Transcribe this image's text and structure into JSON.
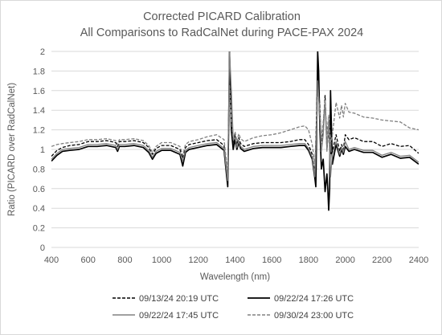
{
  "chart_data": {
    "type": "line",
    "title": "Corrected PICARD Calibration",
    "subtitle": "All Comparisons to RadCalNet during PACE-PAX 2024",
    "xlabel": "Wavelength (nm)",
    "ylabel": "Ratio (PICARD over RadCalNet)",
    "xlim": [
      400,
      2400
    ],
    "ylim": [
      0,
      2
    ],
    "x_ticks": [
      "400",
      "600",
      "800",
      "1000",
      "1200",
      "1400",
      "1600",
      "1800",
      "2000",
      "2200",
      "2400"
    ],
    "y_ticks": [
      "0",
      "0.2",
      "0.4",
      "0.6",
      "0.8",
      "1",
      "1.2",
      "1.4",
      "1.6",
      "1.8",
      "2"
    ],
    "grid": "horizontal",
    "legend_position": "bottom",
    "series": [
      {
        "name": "09/13/24 20:19 UTC",
        "color": "#000000",
        "style": "dashed",
        "x": [
          400,
          430,
          460,
          500,
          550,
          600,
          650,
          700,
          750,
          760,
          770,
          800,
          850,
          900,
          930,
          950,
          970,
          1000,
          1050,
          1100,
          1115,
          1130,
          1150,
          1200,
          1250,
          1300,
          1340,
          1350,
          1360,
          1365,
          1370,
          1380,
          1390,
          1400,
          1410,
          1420,
          1430,
          1450,
          1500,
          1550,
          1600,
          1650,
          1700,
          1750,
          1780,
          1800,
          1820,
          1835,
          1845,
          1850,
          1855,
          1862,
          1870,
          1880,
          1890,
          1900,
          1910,
          1920,
          1930,
          1950,
          1970,
          1980,
          1990,
          2000,
          2020,
          2050,
          2100,
          2150,
          2200,
          2250,
          2300,
          2350,
          2400
        ],
        "values": [
          0.93,
          0.99,
          1.02,
          1.04,
          1.05,
          1.08,
          1.08,
          1.09,
          1.07,
          1.03,
          1.08,
          1.08,
          1.09,
          1.07,
          1.02,
          0.95,
          1.01,
          1.04,
          1.04,
          1.0,
          0.91,
          1.02,
          1.05,
          1.07,
          1.09,
          1.1,
          1.04,
          0.86,
          0.7,
          1.3,
          1.75,
          1.25,
          1.05,
          1.15,
          1.05,
          1.12,
          1.06,
          1.03,
          1.06,
          1.07,
          1.07,
          1.07,
          1.08,
          1.1,
          1.1,
          1.05,
          0.95,
          0.75,
          1.45,
          1.75,
          1.65,
          1.4,
          1.0,
          1.2,
          1.55,
          1.0,
          1.2,
          0.95,
          0.98,
          1.15,
          0.98,
          1.05,
          1.0,
          1.15,
          1.1,
          1.12,
          1.08,
          1.08,
          1.03,
          1.06,
          1.03,
          1.04,
          0.96
        ]
      },
      {
        "name": "09/22/24 17:26 UTC",
        "color": "#000000",
        "style": "solid",
        "x": [
          400,
          430,
          460,
          500,
          550,
          600,
          650,
          700,
          750,
          760,
          770,
          800,
          850,
          900,
          930,
          950,
          970,
          1000,
          1050,
          1100,
          1115,
          1130,
          1150,
          1200,
          1250,
          1300,
          1340,
          1350,
          1360,
          1365,
          1370,
          1380,
          1390,
          1400,
          1410,
          1420,
          1430,
          1450,
          1500,
          1550,
          1600,
          1650,
          1700,
          1750,
          1780,
          1800,
          1820,
          1835,
          1840,
          1845,
          1850,
          1855,
          1862,
          1870,
          1880,
          1890,
          1900,
          1905,
          1910,
          1915,
          1920,
          1930,
          1950,
          1970,
          1980,
          1990,
          2000,
          2020,
          2050,
          2100,
          2150,
          2200,
          2250,
          2300,
          2350,
          2400
        ],
        "values": [
          0.88,
          0.94,
          0.98,
          0.99,
          1.0,
          1.03,
          1.03,
          1.04,
          1.02,
          0.98,
          1.03,
          1.03,
          1.04,
          1.02,
          0.97,
          0.9,
          0.96,
          0.99,
          0.99,
          0.95,
          0.83,
          0.97,
          1.0,
          1.02,
          1.04,
          1.05,
          0.99,
          0.8,
          0.62,
          1.2,
          2.0,
          1.2,
          1.0,
          1.1,
          1.0,
          1.07,
          1.01,
          0.98,
          1.01,
          1.02,
          1.02,
          1.02,
          1.03,
          1.04,
          1.04,
          0.99,
          0.9,
          0.7,
          0.62,
          1.3,
          2.0,
          1.8,
          1.2,
          0.8,
          0.9,
          0.57,
          0.75,
          0.6,
          0.38,
          0.6,
          1.6,
          0.85,
          1.05,
          0.93,
          1.0,
          0.95,
          1.03,
          0.98,
          1.0,
          0.97,
          0.97,
          0.92,
          0.95,
          0.91,
          0.92,
          0.85
        ]
      },
      {
        "name": "09/22/24 17:45 UTC",
        "color": "#808080",
        "style": "solid",
        "x": [
          400,
          430,
          460,
          500,
          550,
          600,
          650,
          700,
          750,
          760,
          770,
          800,
          850,
          900,
          930,
          950,
          970,
          1000,
          1050,
          1100,
          1115,
          1130,
          1150,
          1200,
          1250,
          1300,
          1340,
          1350,
          1360,
          1365,
          1370,
          1380,
          1390,
          1400,
          1410,
          1420,
          1430,
          1450,
          1500,
          1550,
          1600,
          1650,
          1700,
          1750,
          1780,
          1800,
          1820,
          1835,
          1845,
          1850,
          1855,
          1862,
          1870,
          1880,
          1890,
          1900,
          1910,
          1920,
          1930,
          1950,
          1970,
          1980,
          1990,
          2000,
          2020,
          2050,
          2100,
          2150,
          2200,
          2250,
          2300,
          2350,
          2400
        ],
        "values": [
          0.9,
          0.96,
          1.0,
          1.01,
          1.02,
          1.05,
          1.05,
          1.06,
          1.04,
          1.0,
          1.05,
          1.05,
          1.06,
          1.04,
          0.99,
          0.92,
          0.98,
          1.01,
          1.01,
          0.97,
          0.88,
          0.99,
          1.02,
          1.04,
          1.06,
          1.07,
          1.01,
          0.83,
          0.68,
          1.4,
          2.0,
          1.6,
          1.1,
          1.12,
          1.02,
          1.09,
          1.03,
          1.0,
          1.03,
          1.04,
          1.04,
          1.04,
          1.05,
          1.06,
          1.06,
          1.01,
          0.92,
          0.72,
          1.3,
          1.7,
          1.55,
          1.3,
          0.98,
          1.15,
          1.5,
          0.98,
          1.3,
          0.72,
          0.95,
          1.08,
          0.95,
          1.02,
          0.97,
          1.08,
          1.0,
          1.02,
          0.99,
          0.99,
          0.94,
          0.97,
          0.93,
          0.94,
          0.87
        ]
      },
      {
        "name": "09/30/24 23:00 UTC",
        "color": "#808080",
        "style": "dashed",
        "x": [
          400,
          430,
          460,
          500,
          550,
          600,
          650,
          700,
          750,
          760,
          770,
          800,
          850,
          900,
          930,
          950,
          970,
          1000,
          1050,
          1100,
          1115,
          1130,
          1150,
          1200,
          1250,
          1300,
          1340,
          1350,
          1360,
          1365,
          1370,
          1380,
          1390,
          1400,
          1410,
          1420,
          1430,
          1450,
          1500,
          1550,
          1600,
          1650,
          1700,
          1750,
          1780,
          1800,
          1820,
          1835,
          1845,
          1850,
          1855,
          1862,
          1870,
          1880,
          1890,
          1900,
          1910,
          1920,
          1930,
          1950,
          1970,
          1980,
          1990,
          2000,
          2020,
          2050,
          2100,
          2150,
          2200,
          2250,
          2300,
          2350,
          2400
        ],
        "values": [
          1.03,
          1.05,
          1.06,
          1.07,
          1.08,
          1.1,
          1.1,
          1.11,
          1.09,
          1.05,
          1.1,
          1.1,
          1.11,
          1.09,
          1.04,
          0.97,
          1.03,
          1.07,
          1.07,
          1.03,
          0.94,
          1.05,
          1.08,
          1.1,
          1.13,
          1.15,
          1.1,
          0.93,
          0.77,
          1.35,
          1.65,
          1.3,
          1.1,
          1.18,
          1.08,
          1.16,
          1.11,
          1.08,
          1.12,
          1.14,
          1.15,
          1.17,
          1.2,
          1.23,
          1.24,
          1.2,
          1.05,
          0.85,
          1.35,
          1.6,
          1.52,
          1.38,
          1.1,
          1.28,
          1.5,
          1.15,
          1.35,
          1.05,
          1.15,
          1.48,
          1.32,
          1.45,
          1.33,
          1.47,
          1.38,
          1.37,
          1.33,
          1.32,
          1.3,
          1.29,
          1.28,
          1.22,
          1.2
        ]
      }
    ]
  }
}
